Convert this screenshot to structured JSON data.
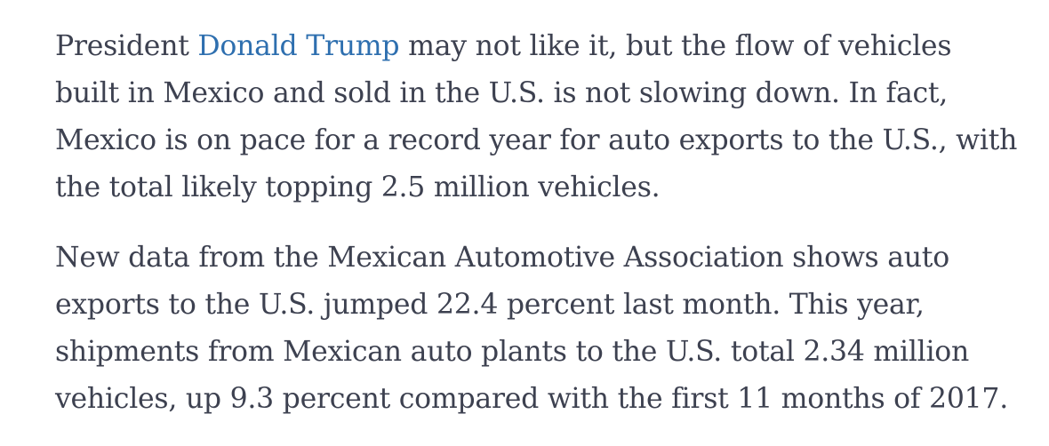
{
  "article": {
    "paragraph1": {
      "line1_pre": "President ",
      "link_text": "Donald Trump",
      "line1_post": " may not like it, but the flow of vehicles",
      "line2": "built in Mexico and sold in the U.S. is not slowing down. In fact,",
      "line3": "Mexico is on pace for a record year for auto exports to the U.S., with",
      "line4": "the total likely topping 2.5 million vehicles."
    },
    "paragraph2": {
      "line1": "New data from the Mexican Automotive Association shows auto",
      "line2": "exports to the U.S. jumped 22.4 percent last month. This year,",
      "line3": "shipments from Mexican auto plants to the U.S. total 2.34 million",
      "line4": "vehicles, up 9.3 percent compared with the first 11 months of 2017."
    },
    "link_color": "#2e6faf",
    "text_color": "#3d4150"
  }
}
